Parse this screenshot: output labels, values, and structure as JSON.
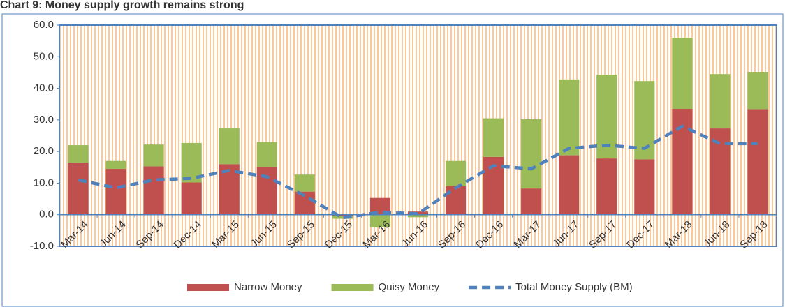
{
  "chart_data": {
    "type": "bar",
    "title": "Chart 9: Money supply growth remains strong",
    "categories": [
      "Mar-14",
      "Jun-14",
      "Sep-14",
      "Dec-14",
      "Mar-15",
      "Jun-15",
      "Sep-15",
      "Dec-15",
      "Mar-16",
      "Jun-16",
      "Sep-16",
      "Dec-16",
      "Mar-17",
      "Jun-17",
      "Sep-17",
      "Dec-17",
      "Mar-18",
      "Jun-18",
      "Sep-18"
    ],
    "series": [
      {
        "name": "Narrow Money",
        "color": "#c0504d",
        "kind": "bar",
        "values": [
          16.5,
          14.5,
          15.3,
          10.2,
          16,
          15,
          7.3,
          -0.3,
          5.3,
          1,
          9,
          18.3,
          8.3,
          18.8,
          17.8,
          17.5,
          33.5,
          27.3,
          33.4
        ]
      },
      {
        "name": "Quisy Money",
        "color": "#9bbb59",
        "kind": "bar",
        "values": [
          5.5,
          2.5,
          6.9,
          12.5,
          11.3,
          8,
          5.4,
          -1,
          -4,
          -0.8,
          8,
          12.2,
          21.9,
          24,
          26.5,
          24.8,
          22.5,
          17.2,
          11.8
        ]
      },
      {
        "name": "Total Money Supply (BM)",
        "color": "#4f81bd",
        "kind": "line",
        "values": [
          11,
          8.5,
          11,
          11.5,
          14,
          12,
          6,
          -1,
          0.8,
          0.3,
          8.5,
          15.5,
          14.5,
          21,
          22,
          21,
          28,
          22.5,
          22.5
        ]
      }
    ],
    "ylim": [
      -10,
      60
    ],
    "yticks": [
      {
        "value": -10,
        "label": "-10.0"
      },
      {
        "value": 0,
        "label": "0.0"
      },
      {
        "value": 10,
        "label": "10.0"
      },
      {
        "value": 20,
        "label": "20.0"
      },
      {
        "value": 30,
        "label": "30.0"
      },
      {
        "value": 40,
        "label": "40.0"
      },
      {
        "value": 50,
        "label": "50.0"
      },
      {
        "value": 60,
        "label": "60.0"
      }
    ],
    "legend": "bottom"
  }
}
